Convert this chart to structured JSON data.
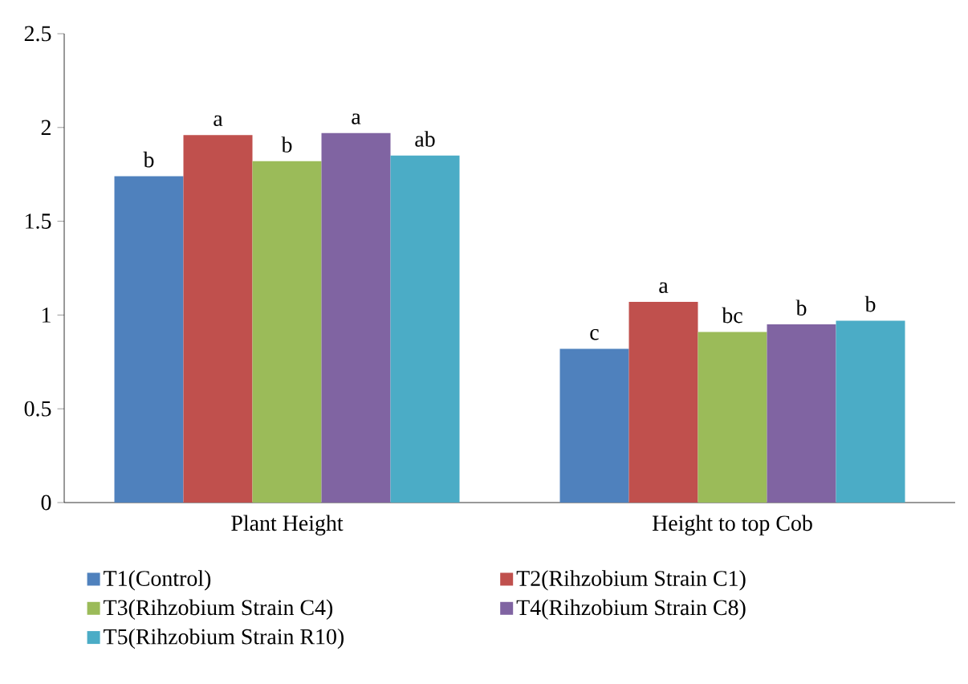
{
  "chart_data": {
    "type": "bar",
    "categories": [
      "Plant Height",
      "Height to top Cob"
    ],
    "series": [
      {
        "name": "T1(Control)",
        "color": "#4f81bd",
        "values": [
          1.74,
          0.82
        ],
        "value_labels": [
          "b",
          "c"
        ]
      },
      {
        "name": "T2(Rihzobium Strain C1)",
        "color": "#c0504d",
        "values": [
          1.96,
          1.07
        ],
        "value_labels": [
          "a",
          "a"
        ]
      },
      {
        "name": "T3(Rihzobium Strain C4)",
        "color": "#9bbb59",
        "values": [
          1.82,
          0.91
        ],
        "value_labels": [
          "b",
          "bc"
        ]
      },
      {
        "name": "T4(Rihzobium Strain C8)",
        "color": "#8064a2",
        "values": [
          1.97,
          0.95
        ],
        "value_labels": [
          "a",
          "b"
        ]
      },
      {
        "name": "T5(Rihzobium Strain R10)",
        "color": "#4bacc6",
        "values": [
          1.85,
          0.97
        ],
        "value_labels": [
          "ab",
          "b"
        ]
      }
    ],
    "ylim": [
      0,
      2.5
    ],
    "yticks": [
      0,
      0.5,
      1,
      1.5,
      2,
      2.5
    ],
    "grid": false,
    "legend": "bottom"
  }
}
